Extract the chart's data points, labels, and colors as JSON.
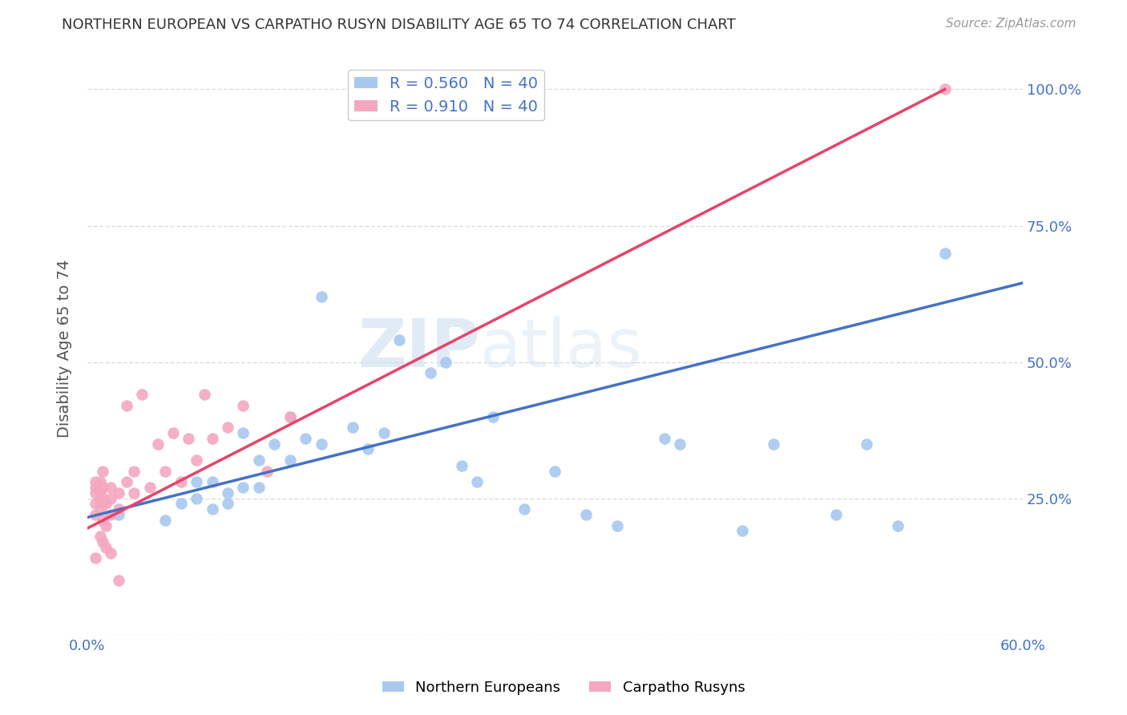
{
  "title": "NORTHERN EUROPEAN VS CARPATHO RUSYN DISABILITY AGE 65 TO 74 CORRELATION CHART",
  "source": "Source: ZipAtlas.com",
  "ylabel": "Disability Age 65 to 74",
  "xlim": [
    0.0,
    0.6
  ],
  "ylim": [
    0.0,
    1.05
  ],
  "blue_R": 0.56,
  "blue_N": 40,
  "pink_R": 0.91,
  "pink_N": 40,
  "blue_color": "#A8C8F0",
  "pink_color": "#F4A8C0",
  "blue_line_color": "#4472C4",
  "pink_line_color": "#E8436A",
  "legend_label_blue": "Northern Europeans",
  "legend_label_pink": "Carpatho Rusyns",
  "blue_scatter_x": [
    0.02,
    0.05,
    0.06,
    0.07,
    0.07,
    0.08,
    0.08,
    0.09,
    0.09,
    0.1,
    0.1,
    0.11,
    0.11,
    0.12,
    0.13,
    0.13,
    0.14,
    0.15,
    0.15,
    0.17,
    0.18,
    0.19,
    0.2,
    0.22,
    0.23,
    0.24,
    0.25,
    0.26,
    0.28,
    0.3,
    0.32,
    0.34,
    0.37,
    0.38,
    0.42,
    0.44,
    0.48,
    0.52,
    0.55,
    0.5
  ],
  "blue_scatter_y": [
    0.22,
    0.21,
    0.24,
    0.28,
    0.25,
    0.28,
    0.23,
    0.26,
    0.24,
    0.37,
    0.27,
    0.32,
    0.27,
    0.35,
    0.4,
    0.32,
    0.36,
    0.35,
    0.62,
    0.38,
    0.34,
    0.37,
    0.54,
    0.48,
    0.5,
    0.31,
    0.28,
    0.4,
    0.23,
    0.3,
    0.22,
    0.2,
    0.36,
    0.35,
    0.19,
    0.35,
    0.22,
    0.2,
    0.7,
    0.35
  ],
  "pink_scatter_x": [
    0.005,
    0.005,
    0.005,
    0.005,
    0.005,
    0.008,
    0.008,
    0.008,
    0.008,
    0.01,
    0.01,
    0.01,
    0.01,
    0.01,
    0.012,
    0.012,
    0.015,
    0.015,
    0.015,
    0.02,
    0.02,
    0.025,
    0.025,
    0.03,
    0.03,
    0.035,
    0.04,
    0.045,
    0.05,
    0.055,
    0.06,
    0.065,
    0.07,
    0.075,
    0.08,
    0.09,
    0.1,
    0.115,
    0.13,
    0.55
  ],
  "pink_scatter_y": [
    0.22,
    0.24,
    0.26,
    0.27,
    0.28,
    0.23,
    0.25,
    0.26,
    0.28,
    0.21,
    0.24,
    0.25,
    0.27,
    0.3,
    0.2,
    0.24,
    0.22,
    0.25,
    0.27,
    0.23,
    0.26,
    0.28,
    0.42,
    0.26,
    0.3,
    0.44,
    0.27,
    0.35,
    0.3,
    0.37,
    0.28,
    0.36,
    0.32,
    0.44,
    0.36,
    0.38,
    0.42,
    0.3,
    0.4,
    1.0
  ],
  "pink_low_scatter_x": [
    0.005,
    0.008,
    0.01,
    0.012,
    0.015,
    0.02
  ],
  "pink_low_scatter_y": [
    0.14,
    0.18,
    0.17,
    0.16,
    0.15,
    0.1
  ],
  "background_color": "#FFFFFF",
  "grid_color": "#DDDDDD",
  "title_color": "#333333",
  "tick_label_color": "#4472C4"
}
